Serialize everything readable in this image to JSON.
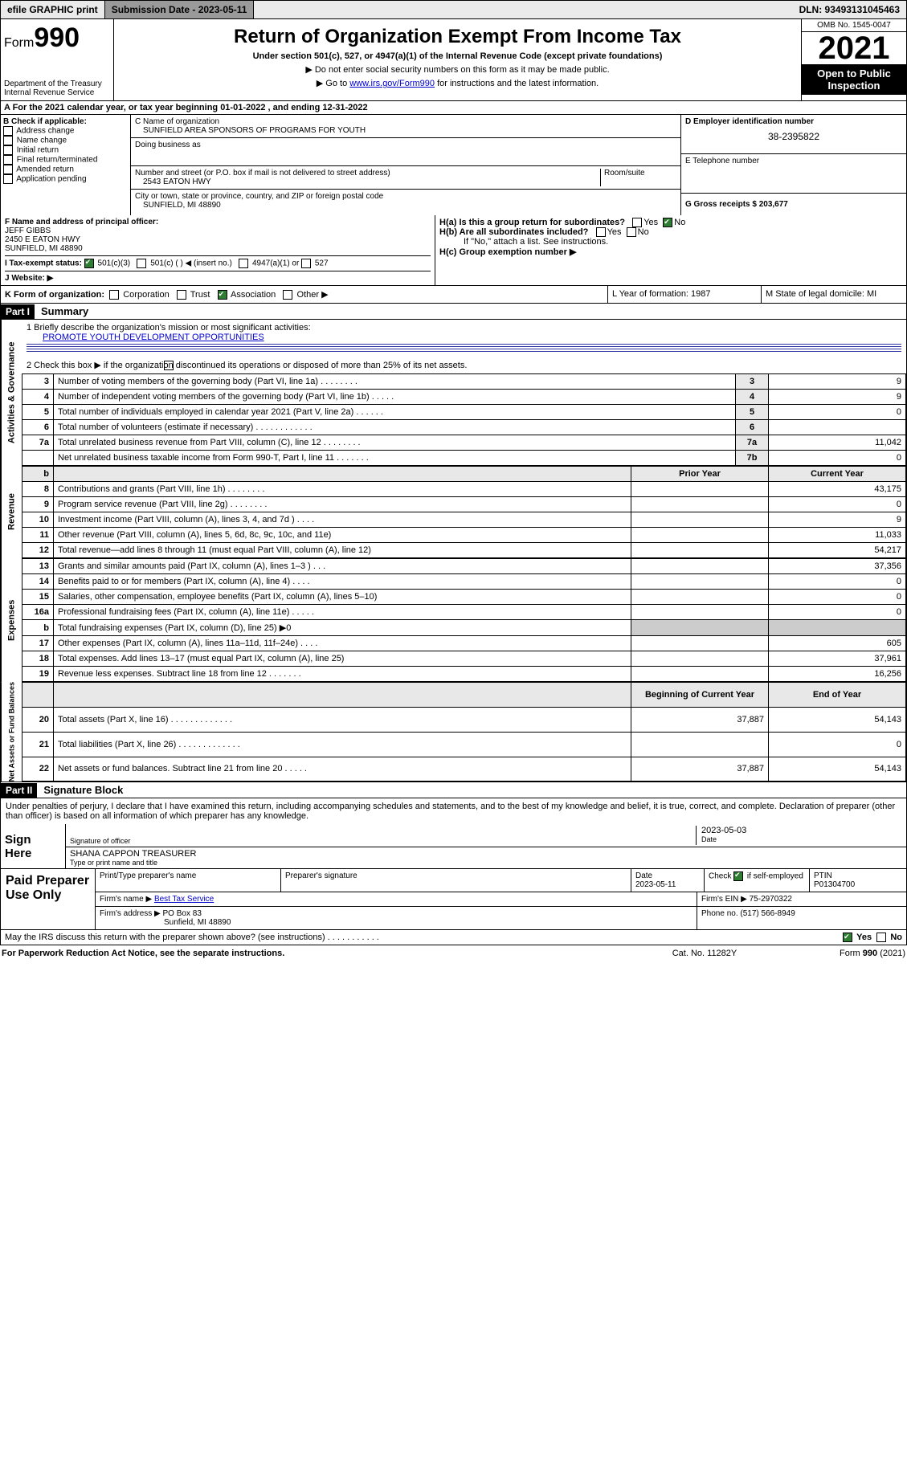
{
  "topbar": {
    "efile": "efile GRAPHIC print",
    "subdate_lbl": "Submission Date - 2023-05-11",
    "dln": "DLN: 93493131045463"
  },
  "header": {
    "form": "Form",
    "formno": "990",
    "dept": "Department of the Treasury\nInternal Revenue Service",
    "title": "Return of Organization Exempt From Income Tax",
    "sub": "Under section 501(c), 527, or 4947(a)(1) of the Internal Revenue Code (except private foundations)",
    "note1": "▶ Do not enter social security numbers on this form as it may be made public.",
    "note2_pre": "▶ Go to ",
    "note2_link": "www.irs.gov/Form990",
    "note2_post": " for instructions and the latest information.",
    "omb": "OMB No. 1545-0047",
    "year": "2021",
    "inspect": "Open to Public\nInspection"
  },
  "taxline": "A For the 2021 calendar year, or tax year beginning 01-01-2022    , and ending 12-31-2022",
  "checkB": {
    "title": "B Check if applicable:",
    "opts": [
      "Address change",
      "Name change",
      "Initial return",
      "Final return/terminated",
      "Amended return",
      "Application pending"
    ]
  },
  "org": {
    "c_lbl": "C Name of organization",
    "name": "SUNFIELD AREA SPONSORS OF PROGRAMS FOR YOUTH",
    "dba_lbl": "Doing business as",
    "addr_lbl": "Number and street (or P.O. box if mail is not delivered to street address)",
    "room_lbl": "Room/suite",
    "addr": "2543 EATON HWY",
    "city_lbl": "City or town, state or province, country, and ZIP or foreign postal code",
    "city": "SUNFIELD, MI  48890"
  },
  "right": {
    "d_lbl": "D Employer identification number",
    "ein": "38-2395822",
    "e_lbl": "E Telephone number",
    "g_lbl": "G Gross receipts $ 203,677"
  },
  "officer": {
    "f_lbl": "F Name and address of principal officer:",
    "name": "JEFF GIBBS",
    "addr1": "2450 E EATON HWY",
    "addr2": "SUNFIELD, MI  48890",
    "ha": "H(a)  Is this a group return for subordinates?",
    "hb": "H(b)  Are all subordinates included?",
    "hb_note": "If \"No,\" attach a list. See instructions.",
    "hc": "H(c)  Group exemption number ▶",
    "yes": "Yes",
    "no": "No"
  },
  "i": {
    "lbl": "I    Tax-exempt status:",
    "o1": "501(c)(3)",
    "o2": "501(c) (  ) ◀ (insert no.)",
    "o3": "4947(a)(1) or",
    "o4": "527"
  },
  "j": "J    Website: ▶",
  "k": {
    "lbl": "K Form of organization:",
    "o1": "Corporation",
    "o2": "Trust",
    "o3": "Association",
    "o4": "Other ▶"
  },
  "lm": {
    "l": "L Year of formation: 1987",
    "m": "M State of legal domicile: MI"
  },
  "part1": "Part I",
  "part1_t": "Summary",
  "mission_lbl": "1   Briefly describe the organization's mission or most significant activities:",
  "mission": "PROMOTE YOUTH DEVELOPMENT OPPORTUNITIES",
  "q2": "2   Check this box ▶        if the organization discontinued its operations or disposed of more than 25% of its net assets.",
  "ag": "Activities & Governance",
  "rows_ag": [
    {
      "n": "3",
      "t": "Number of voting members of the governing body (Part VI, line 1a)   .    .    .    .    .    .    .    .",
      "c": "3",
      "v": "9"
    },
    {
      "n": "4",
      "t": "Number of independent voting members of the governing body (Part VI, line 1b)   .    .    .    .    .",
      "c": "4",
      "v": "9"
    },
    {
      "n": "5",
      "t": "Total number of individuals employed in calendar year 2021 (Part V, line 2a)   .    .    .    .    .    .",
      "c": "5",
      "v": "0"
    },
    {
      "n": "6",
      "t": "Total number of volunteers (estimate if necessary)   .    .    .    .    .    .    .    .    .    .    .    .",
      "c": "6",
      "v": ""
    },
    {
      "n": "7a",
      "t": "Total unrelated business revenue from Part VIII, column (C), line 12   .    .    .    .    .    .    .    .",
      "c": "7a",
      "v": "11,042"
    },
    {
      "n": "",
      "t": "Net unrelated business taxable income from Form 990-T, Part I, line 11   .    .    .    .    .    .    .",
      "c": "7b",
      "v": "0"
    }
  ],
  "rev_lbl": "Revenue",
  "exp_lbl": "Expenses",
  "net_lbl": "Net Assets or Fund Balances",
  "col_prior": "Prior Year",
  "col_curr": "Current Year",
  "col_boy": "Beginning of Current Year",
  "col_eoy": "End of Year",
  "revenue": [
    {
      "n": "8",
      "t": "Contributions and grants (Part VIII, line 1h)   .    .    .    .    .    .    .    .",
      "p": "",
      "c": "43,175"
    },
    {
      "n": "9",
      "t": "Program service revenue (Part VIII, line 2g)   .    .    .    .    .    .    .    .",
      "p": "",
      "c": "0"
    },
    {
      "n": "10",
      "t": "Investment income (Part VIII, column (A), lines 3, 4, and 7d )   .    .    .    .",
      "p": "",
      "c": "9"
    },
    {
      "n": "11",
      "t": "Other revenue (Part VIII, column (A), lines 5, 6d, 8c, 9c, 10c, and 11e)",
      "p": "",
      "c": "11,033"
    },
    {
      "n": "12",
      "t": "Total revenue—add lines 8 through 11 (must equal Part VIII, column (A), line 12)",
      "p": "",
      "c": "54,217"
    }
  ],
  "expenses": [
    {
      "n": "13",
      "t": "Grants and similar amounts paid (Part IX, column (A), lines 1–3 )   .    .    .",
      "p": "",
      "c": "37,356"
    },
    {
      "n": "14",
      "t": "Benefits paid to or for members (Part IX, column (A), line 4)   .    .    .    .",
      "p": "",
      "c": "0"
    },
    {
      "n": "15",
      "t": "Salaries, other compensation, employee benefits (Part IX, column (A), lines 5–10)",
      "p": "",
      "c": "0"
    },
    {
      "n": "16a",
      "t": "Professional fundraising fees (Part IX, column (A), line 11e)   .    .    .    .    .",
      "p": "",
      "c": "0"
    },
    {
      "n": "b",
      "t": "Total fundraising expenses (Part IX, column (D), line 25) ▶0",
      "p": "—",
      "c": "—"
    },
    {
      "n": "17",
      "t": "Other expenses (Part IX, column (A), lines 11a–11d, 11f–24e)   .    .    .    .",
      "p": "",
      "c": "605"
    },
    {
      "n": "18",
      "t": "Total expenses. Add lines 13–17 (must equal Part IX, column (A), line 25)",
      "p": "",
      "c": "37,961"
    },
    {
      "n": "19",
      "t": "Revenue less expenses. Subtract line 18 from line 12   .    .    .    .    .    .    .",
      "p": "",
      "c": "16,256"
    }
  ],
  "netassets": [
    {
      "n": "20",
      "t": "Total assets (Part X, line 16)   .    .    .    .    .    .    .    .    .    .    .    .    .",
      "p": "37,887",
      "c": "54,143"
    },
    {
      "n": "21",
      "t": "Total liabilities (Part X, line 26)   .    .    .    .    .    .    .    .    .    .    .    .    .",
      "p": "",
      "c": "0"
    },
    {
      "n": "22",
      "t": "Net assets or fund balances. Subtract line 21 from line 20   .    .    .    .    .",
      "p": "37,887",
      "c": "54,143"
    }
  ],
  "part2": "Part II",
  "part2_t": "Signature Block",
  "penalties": "Under penalties of perjury, I declare that I have examined this return, including accompanying schedules and statements, and to the best of my knowledge and belief, it is true, correct, and complete. Declaration of preparer (other than officer) is based on all information of which preparer has any knowledge.",
  "sign": {
    "here": "Sign Here",
    "sigoff": "Signature of officer",
    "date": "Date",
    "dateval": "2023-05-03",
    "name": "SHANA CAPPON  TREASURER",
    "name_lbl": "Type or print name and title"
  },
  "paid": {
    "lbl": "Paid Preparer Use Only",
    "h1": "Print/Type preparer's name",
    "h2": "Preparer's signature",
    "h3": "Date",
    "h3v": "2023-05-11",
    "h4": "Check          if self-employed",
    "h5": "PTIN",
    "h5v": "P01304700",
    "firm_lbl": "Firm's name     ▶",
    "firm": "Best Tax Service",
    "ein_lbl": "Firm's EIN ▶",
    "ein": "75-2970322",
    "addr_lbl": "Firm's address ▶",
    "addr": "PO Box 83",
    "addr2": "Sunfield, MI  48890",
    "phone_lbl": "Phone no.",
    "phone": "(517) 566-8949"
  },
  "discuss": "May the IRS discuss this return with the preparer shown above? (see instructions)   .   .   .   .   .   .   .   .   .   .   .",
  "footer": {
    "l": "For Paperwork Reduction Act Notice, see the separate instructions.",
    "m": "Cat. No. 11282Y",
    "r": "Form 990 (2021)"
  }
}
